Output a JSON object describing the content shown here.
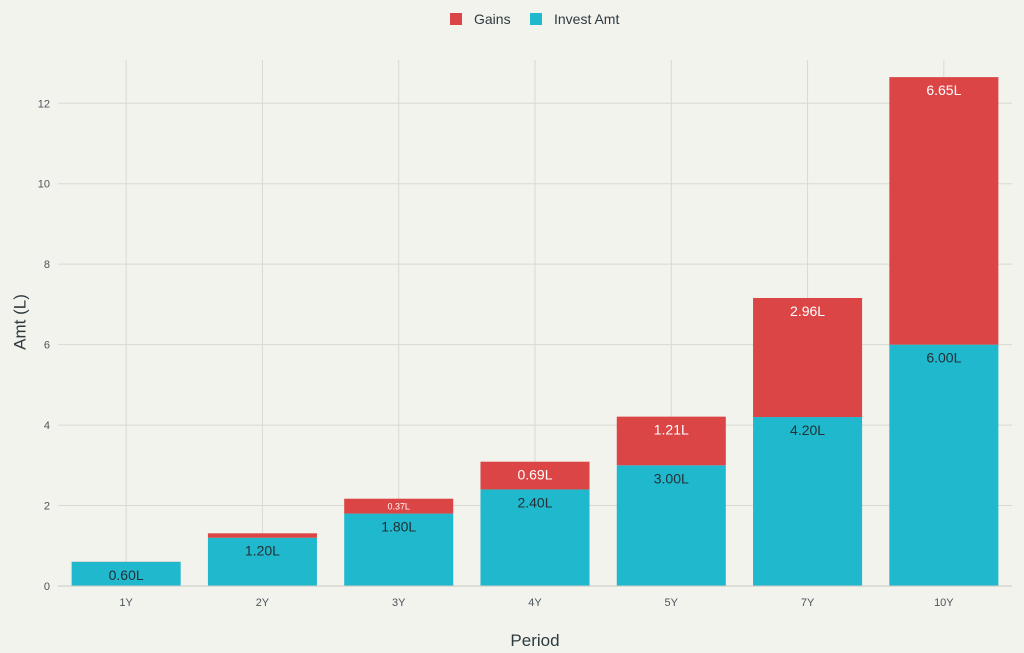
{
  "chart_data": {
    "type": "bar",
    "stacked": true,
    "categories": [
      "1Y",
      "2Y",
      "3Y",
      "4Y",
      "5Y",
      "7Y",
      "10Y"
    ],
    "series": [
      {
        "name": "Invest Amt",
        "color": "#1fb8cd",
        "values": [
          0.6,
          1.2,
          1.8,
          2.4,
          3.0,
          4.2,
          6.0
        ],
        "labels": [
          "0.60L",
          "1.20L",
          "1.80L",
          "2.40L",
          "3.00L",
          "4.20L",
          "6.00L"
        ]
      },
      {
        "name": "Gains",
        "color": "#db4545",
        "values": [
          0.003,
          0.11,
          0.37,
          0.69,
          1.21,
          2.96,
          6.65
        ],
        "labels": [
          "",
          "",
          "0.37L",
          "0.69L",
          "1.21L",
          "2.96L",
          "6.65L"
        ]
      }
    ],
    "legend": [
      "Gains",
      "Invest Amt"
    ],
    "legend_position": "top-center",
    "xlabel": "Period",
    "ylabel": "Amt (L)",
    "ylim": [
      0,
      13.2
    ],
    "yticks": [
      0,
      2,
      4,
      6,
      8,
      10,
      12
    ],
    "grid": true
  }
}
